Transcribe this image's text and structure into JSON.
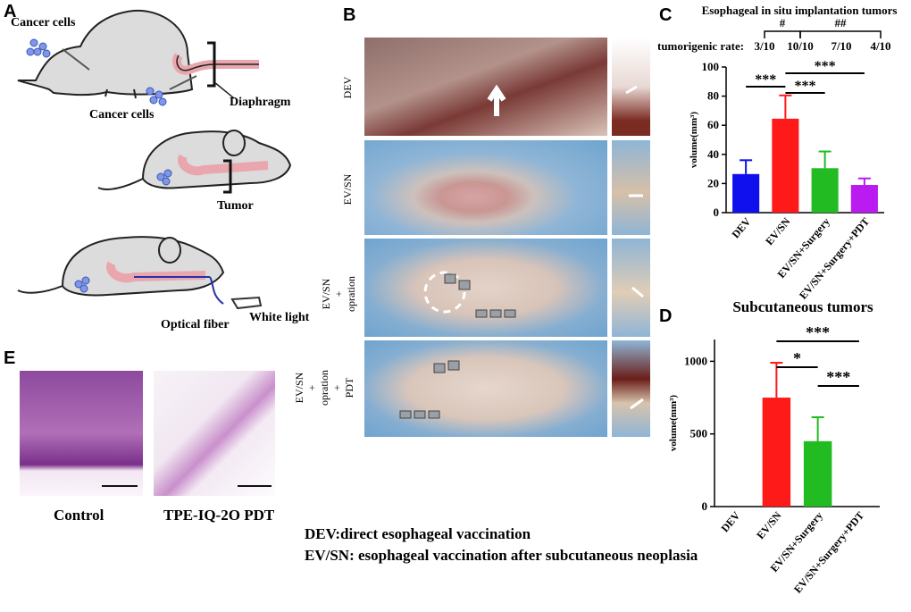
{
  "panels": {
    "A": "A",
    "B": "B",
    "C": "C",
    "D": "D",
    "E": "E"
  },
  "schematic": {
    "cancer_cells_1": "Cancer cells",
    "cancer_cells_2": "Cancer cells",
    "diaphragm": "Diaphragm",
    "tumor": "Tumor",
    "optical_fiber": "Optical fiber",
    "white_light": "White light"
  },
  "photo_rows": {
    "row1": "DEV",
    "row2": "EV/SN",
    "row3": [
      "EV/SN",
      "+",
      "opration"
    ],
    "row4": [
      "EV/SN",
      "+",
      "opration",
      "+",
      "PDT"
    ]
  },
  "histology": {
    "control": "Control",
    "pdt": "TPE-IQ-2O PDT"
  },
  "legend": {
    "line1": "DEV:direct esophageal vaccination",
    "line2": "EV/SN: esophageal vaccination after subcutaneous neoplasia"
  },
  "colors": {
    "blue": "#1010ee",
    "red": "#ff1a1a",
    "green": "#22bb22",
    "purple": "#b91bf0"
  },
  "chart_data": [
    {
      "type": "bar",
      "title": "Esophageal in situ implantation tumors",
      "rate_label": "tumorigenic rate:",
      "tumorigenic_rates": [
        "3/10",
        "10/10",
        "7/10",
        "4/10"
      ],
      "top_marks": [
        "#",
        "##"
      ],
      "categories": [
        "DEV",
        "EV/SN",
        "EV/SN+Surgery",
        "EV/SN+Surgery+PDT"
      ],
      "values": [
        26.5,
        64.5,
        30.5,
        19
      ],
      "errors": [
        9.5,
        16,
        11.5,
        4.5
      ],
      "ylabel": "volume(mm³)",
      "ylim": [
        0,
        100
      ],
      "yticks": [
        "0",
        "20",
        "40",
        "60",
        "80",
        "100"
      ],
      "significance": [
        "***",
        "***",
        "***"
      ]
    },
    {
      "type": "bar",
      "title": "Subcutaneous tumors",
      "categories": [
        "DEV",
        "EV/SN",
        "EV/SN+Surgery",
        "EV/SN+Surgery+PDT"
      ],
      "values": [
        0,
        750,
        450,
        0
      ],
      "errors": [
        0,
        240,
        165,
        0
      ],
      "ylabel": "volume(mm³)",
      "ylim": [
        0,
        1150
      ],
      "yticks": [
        "0",
        "500",
        "1000"
      ],
      "significance": [
        "***",
        "*",
        "***"
      ]
    }
  ]
}
